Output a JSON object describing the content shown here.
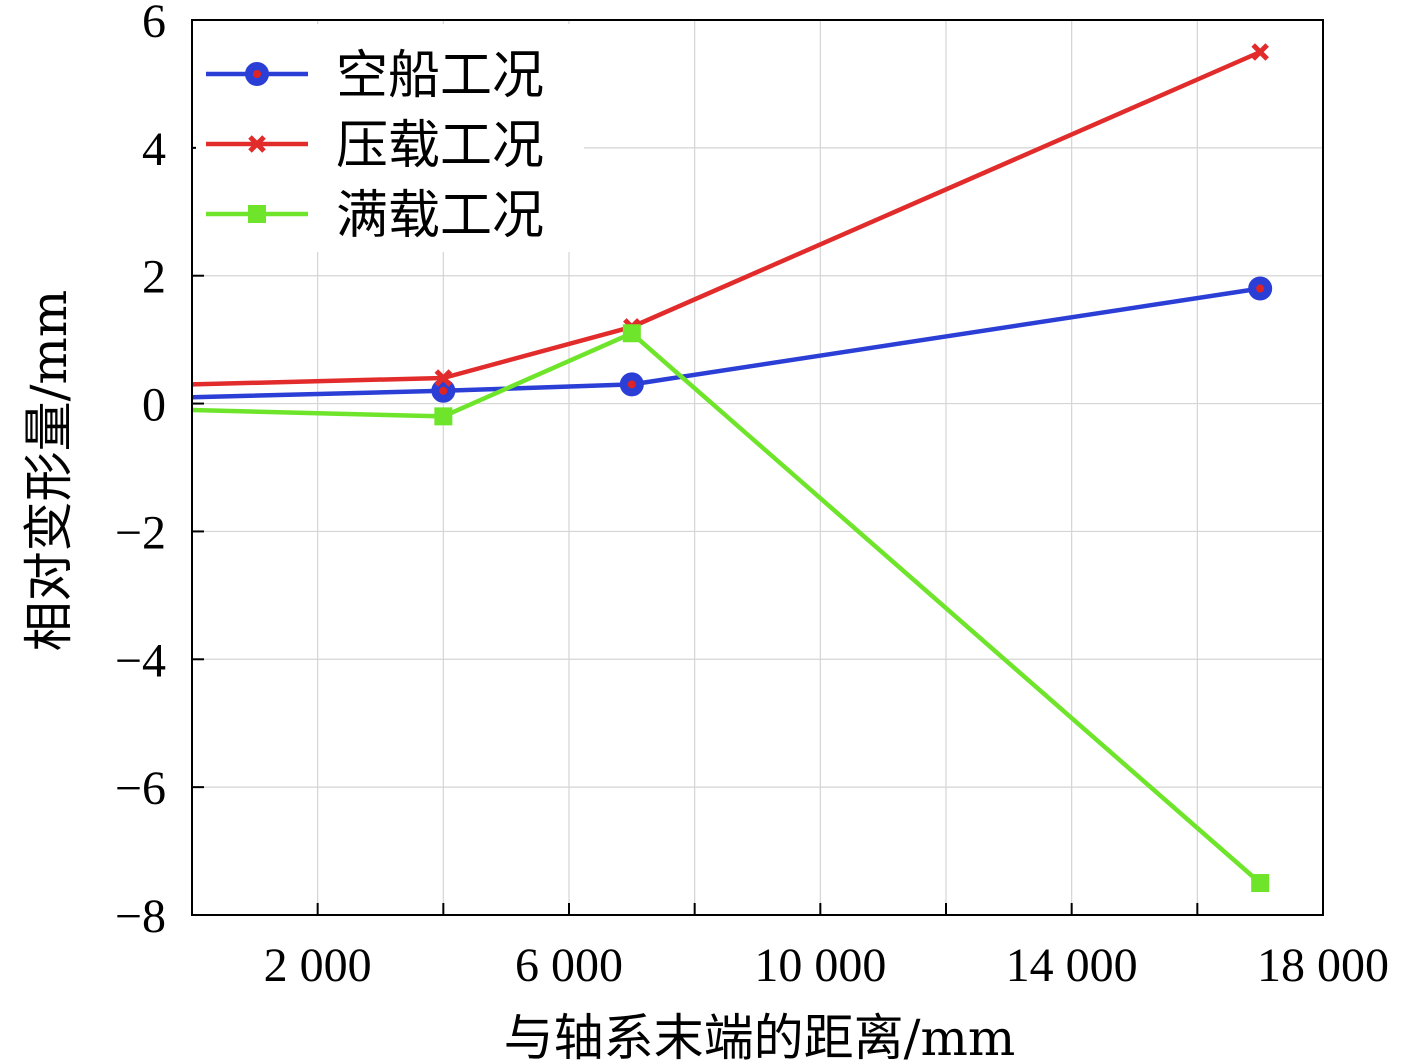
{
  "chart_data": {
    "type": "line",
    "title": "",
    "xlabel": "与轴系末端的距离/mm",
    "ylabel": "相对变形量/mm",
    "xlim": [
      0,
      18000
    ],
    "ylim": [
      -8,
      6
    ],
    "xticks": [
      2000,
      6000,
      10000,
      14000,
      18000
    ],
    "xtick_labels": [
      "2 000",
      "6 000",
      "10 000",
      "14 000",
      "18 000"
    ],
    "yticks": [
      -8,
      -6,
      -4,
      -2,
      0,
      2,
      4,
      6
    ],
    "ytick_labels": [
      "−8",
      "−6",
      "−4",
      "−2",
      "0",
      "2",
      "4",
      "6"
    ],
    "grid": true,
    "legend_position": "top-left",
    "series": [
      {
        "name": "空船工况",
        "color": "#2b3fd6",
        "marker": "circle",
        "x": [
          0,
          4000,
          7000,
          17000
        ],
        "y": [
          0.1,
          0.2,
          0.3,
          1.8
        ],
        "marked": [
          false,
          true,
          true,
          true
        ]
      },
      {
        "name": "压载工况",
        "color": "#e22b2b",
        "marker": "x",
        "x": [
          0,
          4000,
          7000,
          17000
        ],
        "y": [
          0.3,
          0.4,
          1.2,
          5.5
        ],
        "marked": [
          false,
          true,
          true,
          true
        ]
      },
      {
        "name": "满载工况",
        "color": "#6ee52a",
        "marker": "square",
        "x": [
          0,
          4000,
          7000,
          17000
        ],
        "y": [
          -0.1,
          -0.2,
          1.1,
          -7.5
        ],
        "marked": [
          false,
          true,
          true,
          true
        ]
      }
    ]
  }
}
